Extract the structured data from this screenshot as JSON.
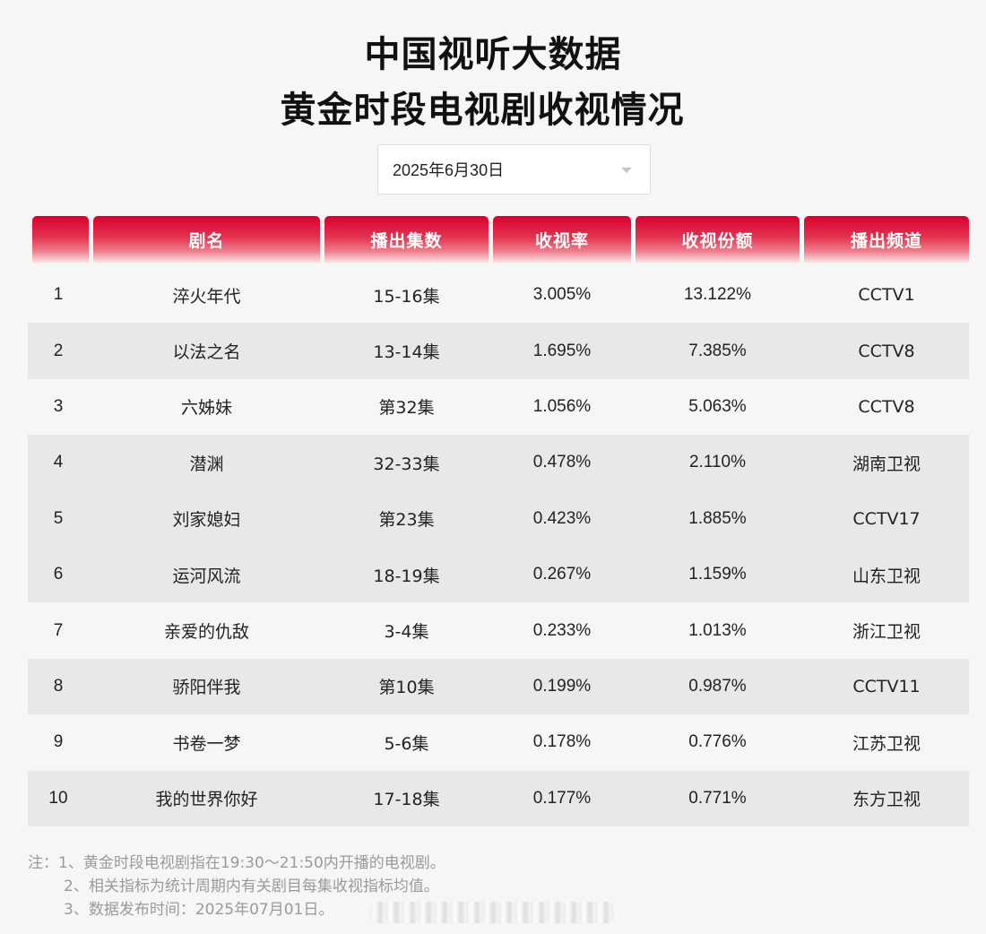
{
  "title": {
    "line1": "中国视听大数据",
    "line2": "黄金时段电视剧收视情况"
  },
  "date_selector": {
    "value": "2025年6月30日",
    "icon": "chevron-down-icon"
  },
  "table": {
    "headers": [
      "",
      "剧名",
      "播出集数",
      "收视率",
      "收视份额",
      "播出频道"
    ],
    "rows": [
      {
        "rank": "1",
        "name": "淬火年代",
        "episodes": "15-16集",
        "rating": "3.005%",
        "share": "13.122%",
        "channel": "CCTV1"
      },
      {
        "rank": "2",
        "name": "以法之名",
        "episodes": "13-14集",
        "rating": "1.695%",
        "share": "7.385%",
        "channel": "CCTV8"
      },
      {
        "rank": "3",
        "name": "六姊妹",
        "episodes": "第32集",
        "rating": "1.056%",
        "share": "5.063%",
        "channel": "CCTV8"
      },
      {
        "rank": "4",
        "name": "潜渊",
        "episodes": "32-33集",
        "rating": "0.478%",
        "share": "2.110%",
        "channel": "湖南卫视"
      },
      {
        "rank": "5",
        "name": "刘家媳妇",
        "episodes": "第23集",
        "rating": "0.423%",
        "share": "1.885%",
        "channel": "CCTV17"
      },
      {
        "rank": "6",
        "name": "运河风流",
        "episodes": "18-19集",
        "rating": "0.267%",
        "share": "1.159%",
        "channel": "山东卫视"
      },
      {
        "rank": "7",
        "name": "亲爱的仇敌",
        "episodes": "3-4集",
        "rating": "0.233%",
        "share": "1.013%",
        "channel": "浙江卫视"
      },
      {
        "rank": "8",
        "name": "骄阳伴我",
        "episodes": "第10集",
        "rating": "0.199%",
        "share": "0.987%",
        "channel": "CCTV11"
      },
      {
        "rank": "9",
        "name": "书卷一梦",
        "episodes": "5-6集",
        "rating": "0.178%",
        "share": "0.776%",
        "channel": "江苏卫视"
      },
      {
        "rank": "10",
        "name": "我的世界你好",
        "episodes": "17-18集",
        "rating": "0.177%",
        "share": "0.771%",
        "channel": "东方卫视"
      }
    ]
  },
  "notes": [
    "注：1、黄金时段电视剧指在19:30～21:50内开播的电视剧。",
    "2、相关指标为统计周期内有关剧目每集收视指标均值。",
    "3、数据发布时间：2025年07月01日。"
  ],
  "colors": {
    "header_red": "#d8002f",
    "row_alt": "#e8e8e8",
    "background": "#f6f6f6"
  }
}
